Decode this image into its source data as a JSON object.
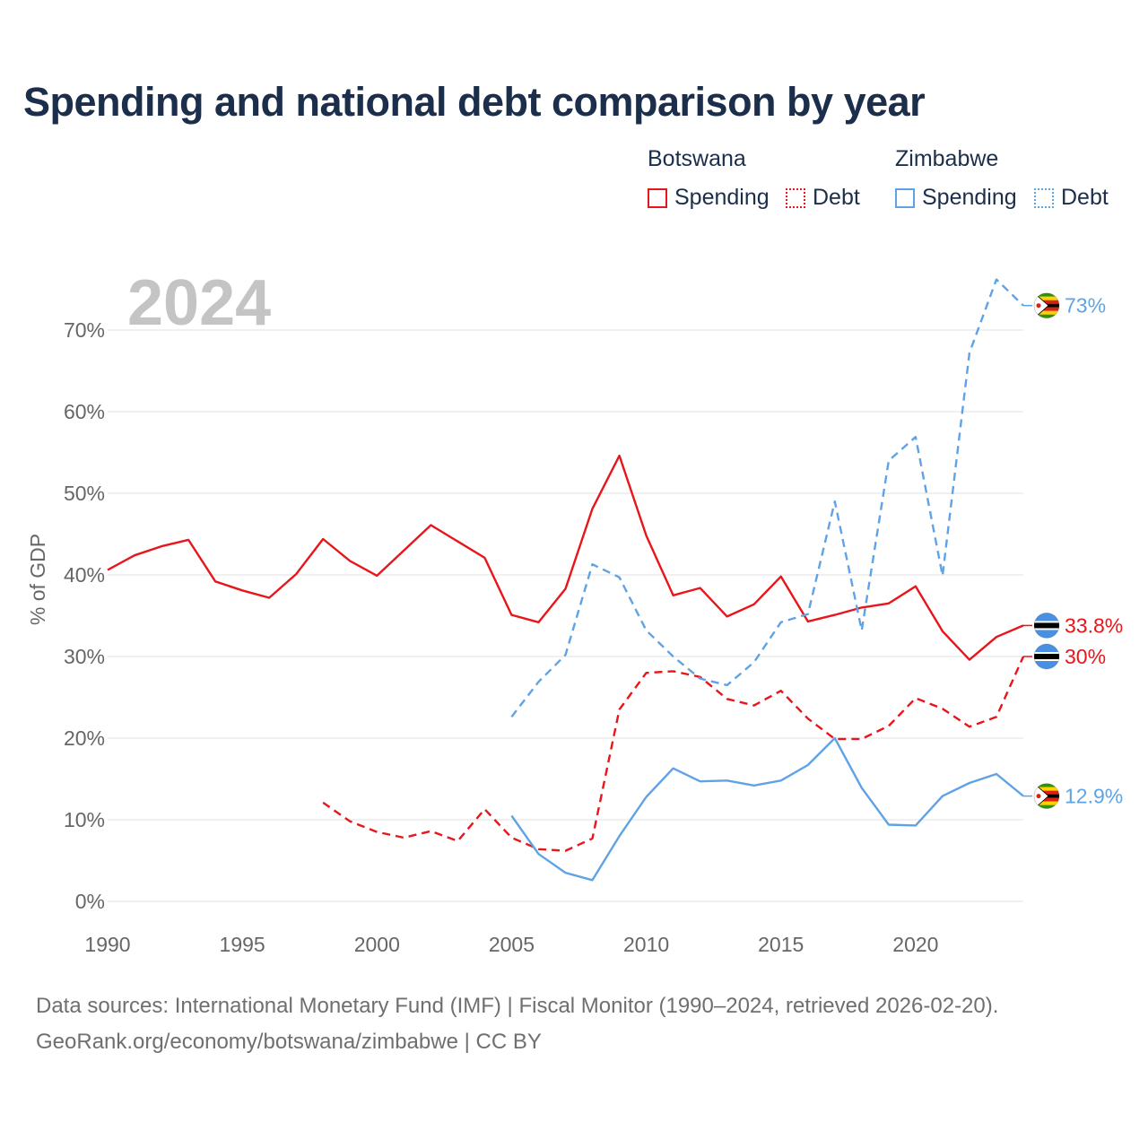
{
  "title": "Spending and national debt comparison by year",
  "legend": {
    "groups": [
      {
        "name": "Botswana",
        "items": [
          {
            "label": "Spending",
            "color": "#e8151b",
            "style": "solid"
          },
          {
            "label": "Debt",
            "color": "#e8151b",
            "style": "dotted"
          }
        ]
      },
      {
        "name": "Zimbabwe",
        "items": [
          {
            "label": "Spending",
            "color": "#5fa3e6",
            "style": "solid"
          },
          {
            "label": "Debt",
            "color": "#5fa3e6",
            "style": "dotted"
          }
        ]
      }
    ]
  },
  "year_overlay": "2024",
  "footer": {
    "line1": "Data sources: International Monetary Fund (IMF) | Fiscal Monitor (1990–2024, retrieved 2026-02-20).",
    "line2": "GeoRank.org/economy/botswana/zimbabwe | CC BY"
  },
  "chart_data": {
    "type": "line",
    "title": "Spending and national debt comparison by year",
    "xlabel": "",
    "ylabel": "% of GDP",
    "xlim": [
      1990,
      2024
    ],
    "ylim": [
      0,
      75
    ],
    "x_ticks": [
      1990,
      1995,
      2000,
      2005,
      2010,
      2015,
      2020
    ],
    "x_tick_labels": [
      "1990",
      "1995",
      "2000",
      "2005",
      "2010",
      "2015",
      "2020"
    ],
    "y_ticks": [
      0,
      10,
      20,
      30,
      40,
      50,
      60,
      70
    ],
    "y_tick_labels": [
      "0%",
      "10%",
      "20%",
      "30%",
      "40%",
      "50%",
      "60%",
      "70%"
    ],
    "grid": true,
    "series": [
      {
        "name": "Botswana Spending",
        "color": "#e8151b",
        "dash": "solid",
        "x": [
          1990,
          1991,
          1992,
          1993,
          1994,
          1995,
          1996,
          1997,
          1998,
          1999,
          2000,
          2001,
          2002,
          2003,
          2004,
          2005,
          2006,
          2007,
          2008,
          2009,
          2010,
          2011,
          2012,
          2013,
          2014,
          2015,
          2016,
          2017,
          2018,
          2019,
          2020,
          2021,
          2022,
          2023,
          2024
        ],
        "values": [
          40.6,
          42.4,
          43.5,
          44.3,
          39.2,
          38.1,
          37.2,
          40.1,
          44.4,
          41.7,
          39.9,
          43.0,
          46.1,
          44.1,
          42.1,
          35.1,
          34.2,
          38.3,
          48.1,
          54.6,
          44.8,
          37.5,
          38.4,
          34.9,
          36.4,
          39.8,
          34.3,
          35.1,
          36.0,
          36.5,
          38.6,
          33.1,
          29.6,
          32.4,
          33.8
        ],
        "end_label": "33.8%"
      },
      {
        "name": "Botswana Debt",
        "color": "#e8151b",
        "dash": "dashed",
        "x": [
          1998,
          1999,
          2000,
          2001,
          2002,
          2003,
          2004,
          2005,
          2006,
          2007,
          2008,
          2009,
          2010,
          2011,
          2012,
          2013,
          2014,
          2015,
          2016,
          2017,
          2018,
          2019,
          2020,
          2021,
          2022,
          2023,
          2024
        ],
        "values": [
          12.1,
          9.8,
          8.5,
          7.8,
          8.6,
          7.4,
          11.3,
          7.8,
          6.4,
          6.2,
          7.7,
          23.5,
          28.0,
          28.2,
          27.5,
          24.8,
          24.0,
          25.8,
          22.4,
          19.9,
          19.9,
          21.5,
          24.9,
          23.6,
          21.4,
          22.6,
          30.0
        ],
        "end_label": "30%"
      },
      {
        "name": "Zimbabwe Spending",
        "color": "#5fa3e6",
        "dash": "solid",
        "x": [
          2005,
          2006,
          2007,
          2008,
          2009,
          2010,
          2011,
          2012,
          2013,
          2014,
          2015,
          2016,
          2017,
          2018,
          2019,
          2020,
          2021,
          2022,
          2023,
          2024
        ],
        "values": [
          10.5,
          5.8,
          3.5,
          2.6,
          8.0,
          12.8,
          16.3,
          14.7,
          14.8,
          14.2,
          14.8,
          16.7,
          20.0,
          13.9,
          9.4,
          9.3,
          12.9,
          14.5,
          15.6,
          12.9
        ],
        "end_label": "12.9%"
      },
      {
        "name": "Zimbabwe Debt",
        "color": "#5fa3e6",
        "dash": "dashed",
        "x": [
          2005,
          2006,
          2007,
          2008,
          2009,
          2010,
          2011,
          2012,
          2013,
          2014,
          2015,
          2016,
          2017,
          2018,
          2019,
          2020,
          2021,
          2022,
          2023,
          2024
        ],
        "values": [
          22.6,
          26.9,
          30.2,
          41.3,
          39.7,
          33.2,
          30.0,
          27.3,
          26.5,
          29.3,
          34.2,
          35.2,
          49.0,
          33.2,
          54.0,
          56.9,
          39.9,
          67.2,
          76.2,
          73.0
        ],
        "end_label": "73%"
      }
    ]
  }
}
